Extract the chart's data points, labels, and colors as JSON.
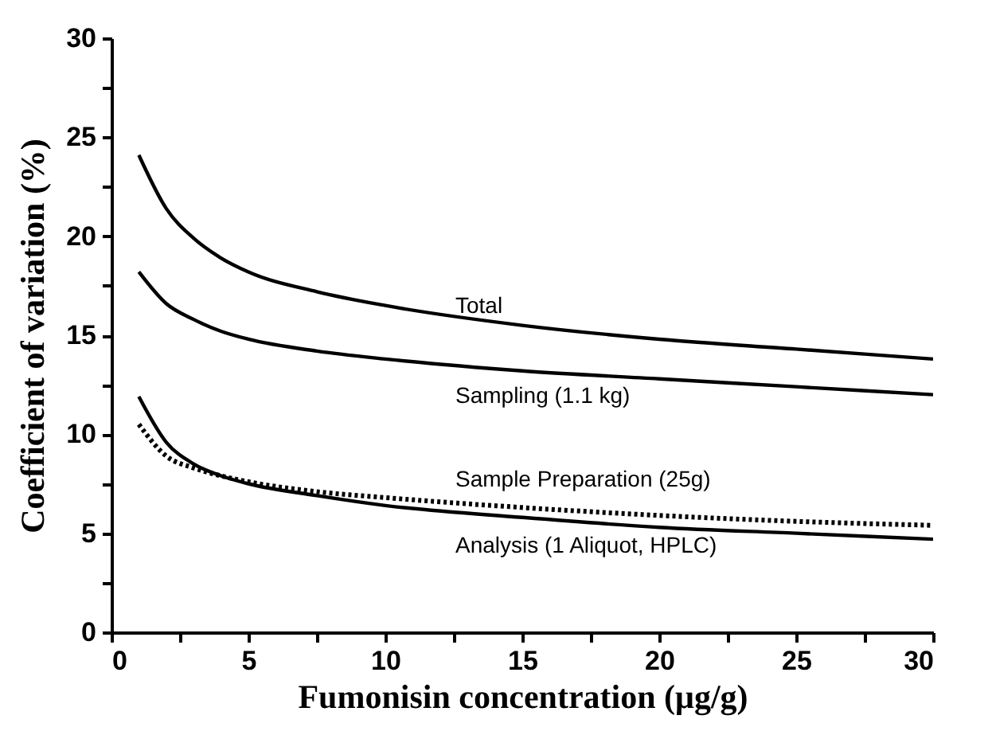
{
  "chart_data": {
    "type": "line",
    "xlabel": "Fumonisin concentration (μg/g)",
    "ylabel": "Coefficient of variation (%)",
    "x": [
      1,
      2,
      3,
      4,
      5,
      7.5,
      10,
      15,
      20,
      25,
      30
    ],
    "series": [
      {
        "name": "Total",
        "color": "#000000",
        "values": [
          24.1,
          21.4,
          19.9,
          18.9,
          18.2,
          17.2,
          16.5,
          15.5,
          14.8,
          14.3,
          13.8
        ]
      },
      {
        "name": "Sampling (1.1 kg)",
        "color": "#000000",
        "values": [
          18.2,
          16.6,
          15.8,
          15.2,
          14.8,
          14.2,
          13.8,
          13.2,
          12.8,
          12.4,
          12.0
        ]
      },
      {
        "name": "Sample Preparation (25g)",
        "color": "#000000",
        "line_style": "dotted",
        "values": [
          10.5,
          8.9,
          8.3,
          7.9,
          7.6,
          7.1,
          6.8,
          6.3,
          5.9,
          5.6,
          5.4
        ]
      },
      {
        "name": "Analysis (1 Aliquot, HPLC)",
        "color": "#000000",
        "values": [
          11.9,
          9.6,
          8.5,
          7.9,
          7.5,
          6.9,
          6.4,
          5.8,
          5.3,
          5.0,
          4.7
        ]
      }
    ],
    "xlim": [
      0,
      30
    ],
    "xticks": [
      0,
      {
        "value": 2.5,
        "label": null
      },
      5,
      {
        "value": 7.5,
        "label": null
      },
      10,
      {
        "value": 12.5,
        "label": null
      },
      15,
      {
        "value": 17.5,
        "label": null
      },
      20,
      {
        "value": 22.5,
        "label": null
      },
      25,
      {
        "value": 27.5,
        "label": null
      },
      30
    ],
    "ylim": [
      0,
      30
    ],
    "yticks": [
      0,
      {
        "value": 2.5,
        "label": null
      },
      5,
      {
        "value": 7.5,
        "label": null
      },
      10,
      {
        "value": 12.5,
        "label": null
      },
      15,
      {
        "value": 17.5,
        "label": null
      },
      20,
      {
        "value": 22.5,
        "label": null
      },
      25,
      {
        "value": 27.5,
        "label": null
      },
      30
    ],
    "grid": false,
    "legend": false,
    "marker": "none",
    "line_style": "solid"
  }
}
